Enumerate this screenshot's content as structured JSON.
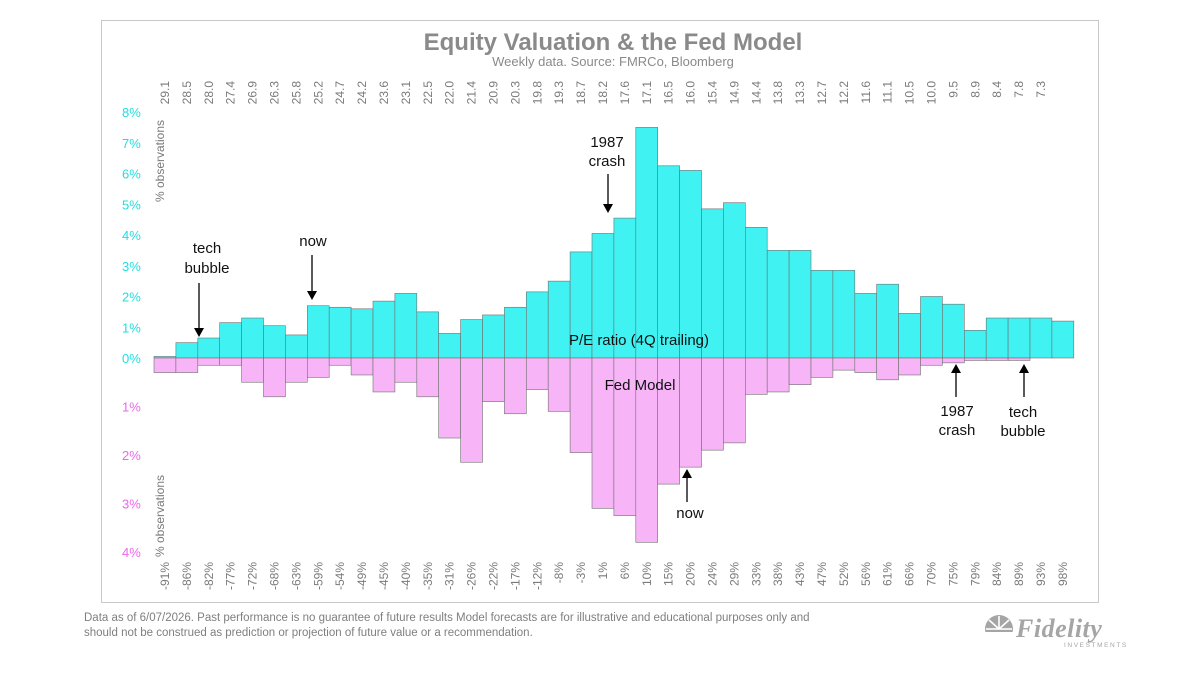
{
  "chart_data": {
    "type": "bar",
    "title": "Equity Valuation & the Fed Model",
    "subtitle": "Weekly data.  Source: FMRCo, Bloomberg",
    "top_axis_ticks": [
      "29.1",
      "28.5",
      "28.0",
      "27.4",
      "26.9",
      "26.3",
      "25.8",
      "25.2",
      "24.7",
      "24.2",
      "23.6",
      "23.1",
      "22.5",
      "22.0",
      "21.4",
      "20.9",
      "20.3",
      "19.8",
      "19.3",
      "18.7",
      "18.2",
      "17.6",
      "17.1",
      "16.5",
      "16.0",
      "15.4",
      "14.9",
      "14.4",
      "13.8",
      "13.3",
      "12.7",
      "12.2",
      "11.6",
      "11.1",
      "10.5",
      "10.0",
      "9.5",
      "8.9",
      "8.4",
      "7.8",
      "7.3"
    ],
    "bottom_axis_ticks": [
      "-91%",
      "-86%",
      "-82%",
      "-77%",
      "-72%",
      "-68%",
      "-63%",
      "-59%",
      "-54%",
      "-49%",
      "-45%",
      "-40%",
      "-35%",
      "-31%",
      "-26%",
      "-22%",
      "-17%",
      "-12%",
      "-8%",
      "-3%",
      "1%",
      "6%",
      "10%",
      "15%",
      "20%",
      "24%",
      "29%",
      "33%",
      "38%",
      "43%",
      "47%",
      "52%",
      "56%",
      "61%",
      "66%",
      "70%",
      "75%",
      "79%",
      "84%",
      "89%",
      "93%",
      "98%"
    ],
    "y_top_ticks": [
      "8%",
      "7%",
      "6%",
      "5%",
      "4%",
      "3%",
      "2%",
      "1%",
      "0%"
    ],
    "y_bottom_ticks": [
      "1%",
      "2%",
      "3%",
      "4%"
    ],
    "y_top_label": "% observations",
    "y_bottom_label": "% observations",
    "ylim_top": [
      0,
      8
    ],
    "ylim_bottom": [
      0,
      4
    ],
    "grid": false,
    "colors": {
      "pe": "#40f2f2",
      "fed": "#f7b5f7",
      "bar_edge": "#707070",
      "top_axis_text": "#22dde0",
      "bottom_axis_text": "#ee66ee"
    },
    "series": [
      {
        "name": "P/E ratio (4Q trailing)",
        "direction": "up",
        "values": [
          0.05,
          0.5,
          0.65,
          1.15,
          1.3,
          1.05,
          0.75,
          1.7,
          1.65,
          1.6,
          1.85,
          2.1,
          1.5,
          0.8,
          1.25,
          1.4,
          1.65,
          2.15,
          2.5,
          3.45,
          4.05,
          4.55,
          7.5,
          6.25,
          6.1,
          4.85,
          5.05,
          4.25,
          3.5,
          3.5,
          2.85,
          2.85,
          2.1,
          2.4,
          1.45,
          2.0,
          1.75,
          0.9,
          1.3,
          1.3,
          1.3,
          1.2
        ]
      },
      {
        "name": "Fed Model",
        "direction": "down",
        "values": [
          0.3,
          0.3,
          0.15,
          0.15,
          0.5,
          0.8,
          0.5,
          0.4,
          0.15,
          0.35,
          0.7,
          0.5,
          0.8,
          1.65,
          2.15,
          0.9,
          1.15,
          0.65,
          1.1,
          1.95,
          3.1,
          3.25,
          3.8,
          2.6,
          2.25,
          1.9,
          1.75,
          0.75,
          0.7,
          0.55,
          0.4,
          0.25,
          0.3,
          0.45,
          0.35,
          0.15,
          0.1,
          0.05,
          0.05,
          0.05,
          0.0,
          0.0
        ]
      }
    ],
    "annotations": {
      "tech_bubble_top": [
        "tech",
        "bubble"
      ],
      "now_top": [
        "now"
      ],
      "crash_top": [
        "1987",
        "crash"
      ],
      "now_bottom": [
        "now"
      ],
      "crash_bottom": [
        "1987",
        "crash"
      ],
      "tech_bubble_bottom": [
        "tech",
        "bubble"
      ]
    }
  },
  "footer": {
    "line1": "Data as of 6/07/2026. Past performance is no guarantee of future results Model forecasts are for illustrative and educational purposes only and",
    "line2": "should not be construed as prediction or projection of future value or a recommendation."
  },
  "brand": {
    "name": "Fidelity",
    "sub": "INVESTMENTS",
    "icon": "fidelity-shield-logo"
  }
}
